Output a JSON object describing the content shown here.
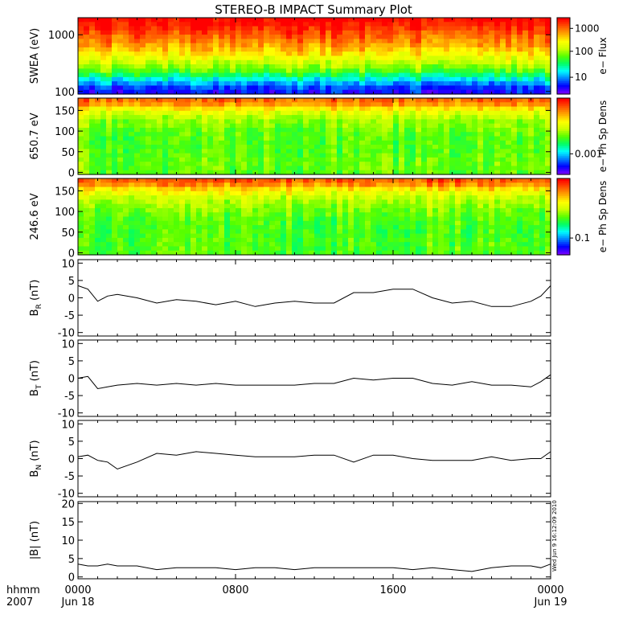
{
  "title": "STEREO-B IMPACT Summary Plot",
  "footer": {
    "format_label": "hhmm",
    "year_label": "2007",
    "x_ticks": [
      "0000",
      "0800",
      "1600",
      "0000"
    ],
    "date_ticks": [
      "Jun 18",
      "Jun 19"
    ],
    "timestamp": "Wed Jun 9 16:12:09 2010"
  },
  "colorbar_colors": [
    "#7a00ff",
    "#0000ff",
    "#0080ff",
    "#00ffff",
    "#00ff66",
    "#55ff00",
    "#ccff00",
    "#ffff00",
    "#ffaa00",
    "#ff5500",
    "#ff0000"
  ],
  "chart_data": [
    {
      "id": "swea",
      "type": "heatmap",
      "ylabel": "SWEA (eV)",
      "ylog": true,
      "ylim": [
        90,
        2000
      ],
      "yticks": [
        {
          "v": 100,
          "label": "100"
        },
        {
          "v": 1000,
          "label": "1000"
        }
      ],
      "colorbar": {
        "label": "e− Flux",
        "ticks": [
          {
            "f": 0.86,
            "label": "1000"
          },
          {
            "f": 0.56,
            "label": "100"
          },
          {
            "f": 0.22,
            "label": "10"
          }
        ]
      },
      "color_profile": [
        [
          0.0,
          10.3
        ],
        [
          0.05,
          10.1
        ],
        [
          0.1,
          9.85
        ],
        [
          0.2,
          9.2
        ],
        [
          0.3,
          8.6
        ],
        [
          0.4,
          7.9
        ],
        [
          0.5,
          7.0
        ],
        [
          0.6,
          6.0
        ],
        [
          0.7,
          5.0
        ],
        [
          0.8,
          3.3
        ],
        [
          0.88,
          2.0
        ],
        [
          0.94,
          1.3
        ],
        [
          1.0,
          1.0
        ]
      ]
    },
    {
      "id": "pad650",
      "type": "heatmap",
      "ylabel": "650.7 eV",
      "ylim": [
        -5,
        180
      ],
      "yticks": [
        {
          "v": 0,
          "label": "0"
        },
        {
          "v": 50,
          "label": "50"
        },
        {
          "v": 100,
          "label": "100"
        },
        {
          "v": 150,
          "label": "150"
        }
      ],
      "colorbar": {
        "label": "e− Ph Sp Dens",
        "ticks": [
          {
            "f": 0.27,
            "label": "0.001"
          }
        ]
      },
      "color_profile": [
        [
          0.0,
          9.0
        ],
        [
          0.08,
          8.3
        ],
        [
          0.18,
          6.6
        ],
        [
          0.3,
          5.6
        ],
        [
          0.5,
          5.0
        ],
        [
          0.7,
          5.0
        ],
        [
          0.85,
          5.2
        ],
        [
          1.0,
          5.1
        ]
      ]
    },
    {
      "id": "pad246",
      "type": "heatmap",
      "ylabel": "246.6 eV",
      "ylim": [
        -5,
        180
      ],
      "yticks": [
        {
          "v": 0,
          "label": "0"
        },
        {
          "v": 50,
          "label": "50"
        },
        {
          "v": 100,
          "label": "100"
        },
        {
          "v": 150,
          "label": "150"
        }
      ],
      "colorbar": {
        "label": "e− Ph Sp Dens",
        "ticks": [
          {
            "f": 0.22,
            "label": "0.1"
          }
        ]
      },
      "color_profile": [
        [
          0.0,
          9.2
        ],
        [
          0.07,
          8.6
        ],
        [
          0.16,
          7.0
        ],
        [
          0.28,
          5.9
        ],
        [
          0.5,
          5.0
        ],
        [
          0.7,
          4.8
        ],
        [
          0.85,
          4.9
        ],
        [
          1.0,
          4.9
        ]
      ]
    },
    {
      "id": "br",
      "type": "line",
      "ylabel_main": "B",
      "ylabel_sub": "R",
      "ylabel_unit": " (nT)",
      "ylim": [
        -11,
        11
      ],
      "yticks": [
        -10,
        -5,
        0,
        5,
        10
      ],
      "x_hours": [
        0,
        0.5,
        1,
        1.5,
        2,
        3,
        4,
        5,
        6,
        7,
        8,
        9,
        10,
        11,
        12,
        13,
        14,
        15,
        16,
        17,
        18,
        19,
        20,
        21,
        22,
        23,
        23.5,
        24
      ],
      "values": [
        3.5,
        2.5,
        -1.0,
        0.5,
        1.0,
        0.0,
        -1.5,
        -0.5,
        -1.0,
        -2.0,
        -1.0,
        -2.5,
        -1.5,
        -1.0,
        -1.5,
        -1.5,
        1.5,
        1.5,
        2.5,
        2.5,
        0.0,
        -1.5,
        -1.0,
        -2.5,
        -2.5,
        -1.0,
        0.5,
        3.5
      ]
    },
    {
      "id": "bt",
      "type": "line",
      "ylabel_main": "B",
      "ylabel_sub": "T",
      "ylabel_unit": " (nT)",
      "ylim": [
        -11,
        11
      ],
      "yticks": [
        -10,
        -5,
        0,
        5,
        10
      ],
      "x_hours": [
        0,
        0.5,
        1,
        1.5,
        2,
        3,
        4,
        5,
        6,
        7,
        8,
        9,
        10,
        11,
        12,
        13,
        14,
        15,
        16,
        17,
        18,
        19,
        20,
        21,
        22,
        23,
        23.5,
        24
      ],
      "values": [
        0.0,
        0.5,
        -3.0,
        -2.5,
        -2.0,
        -1.5,
        -2.0,
        -1.5,
        -2.0,
        -1.5,
        -2.0,
        -2.0,
        -2.0,
        -2.0,
        -1.5,
        -1.5,
        0.0,
        -0.5,
        0.0,
        0.0,
        -1.5,
        -2.0,
        -1.0,
        -2.0,
        -2.0,
        -2.5,
        -1.0,
        1.0
      ]
    },
    {
      "id": "bn",
      "type": "line",
      "ylabel_main": "B",
      "ylabel_sub": "N",
      "ylabel_unit": " (nT)",
      "ylim": [
        -11,
        11
      ],
      "yticks": [
        -10,
        -5,
        0,
        5,
        10
      ],
      "x_hours": [
        0,
        0.5,
        1,
        1.5,
        2,
        3,
        4,
        5,
        6,
        7,
        8,
        9,
        10,
        11,
        12,
        13,
        14,
        15,
        16,
        17,
        18,
        19,
        20,
        21,
        22,
        23,
        23.5,
        24
      ],
      "values": [
        0.5,
        1.0,
        -0.5,
        -1.0,
        -3.0,
        -1.0,
        1.5,
        1.0,
        2.0,
        1.5,
        1.0,
        0.5,
        0.5,
        0.5,
        1.0,
        1.0,
        -1.0,
        1.0,
        1.0,
        0.0,
        -0.5,
        -0.5,
        -0.5,
        0.5,
        -0.5,
        0.0,
        0.0,
        2.0
      ]
    },
    {
      "id": "bmag",
      "type": "line",
      "ylabel_main": "|B|",
      "ylabel_sub": "",
      "ylabel_unit": " (nT)",
      "ylim": [
        -0.5,
        20.5
      ],
      "yticks": [
        0,
        5,
        10,
        15,
        20
      ],
      "x_hours": [
        0,
        0.5,
        1,
        1.5,
        2,
        3,
        4,
        5,
        6,
        7,
        8,
        9,
        10,
        11,
        12,
        13,
        14,
        15,
        16,
        17,
        18,
        19,
        20,
        21,
        22,
        23,
        23.5,
        24
      ],
      "values": [
        3.5,
        3.0,
        3.0,
        3.5,
        3.0,
        3.0,
        2.0,
        2.5,
        2.5,
        2.5,
        2.0,
        2.5,
        2.5,
        2.0,
        2.5,
        2.5,
        2.5,
        2.5,
        2.5,
        2.0,
        2.5,
        2.0,
        1.5,
        2.5,
        3.0,
        3.0,
        2.5,
        3.5
      ]
    }
  ]
}
